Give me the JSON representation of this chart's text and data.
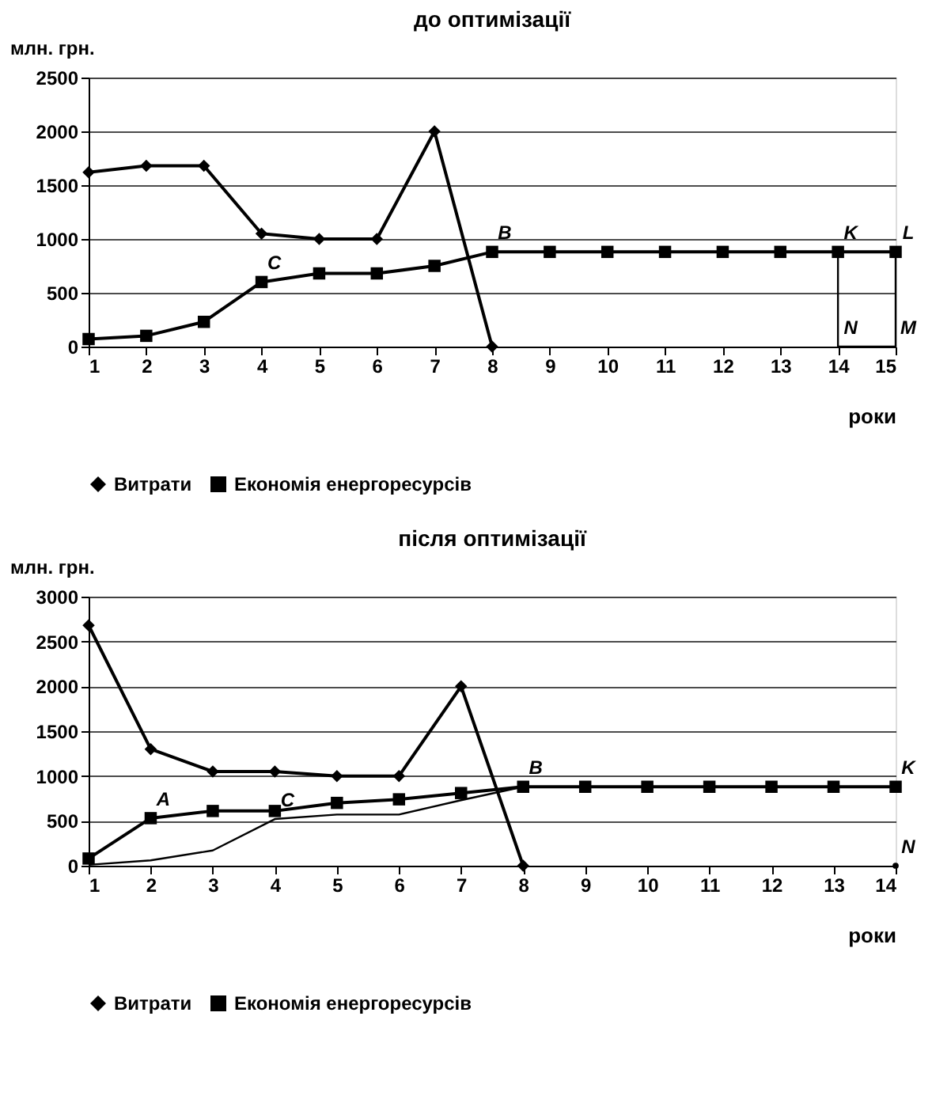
{
  "chart_data": [
    {
      "type": "line",
      "title": "до оптимізації",
      "ylabel": "млн. грн.",
      "xlabel": "роки",
      "xlim": [
        1,
        15
      ],
      "xticks": [
        1,
        2,
        3,
        4,
        5,
        6,
        7,
        8,
        9,
        10,
        11,
        12,
        13,
        14,
        15
      ],
      "ylim": [
        0,
        2500
      ],
      "yticks": [
        0,
        500,
        1000,
        1500,
        2000,
        2500
      ],
      "grid": "y",
      "legend": "bottom",
      "series": [
        {
          "name": "Витрати",
          "color": "#000000",
          "marker": "diamond",
          "x": [
            1,
            2,
            3,
            4,
            5,
            6,
            7,
            8
          ],
          "values": [
            1620,
            1680,
            1680,
            1050,
            1000,
            1000,
            2000,
            0
          ]
        },
        {
          "name": "Економія енергоресурсів",
          "color": "#000000",
          "marker": "square",
          "x": [
            1,
            2,
            3,
            4,
            5,
            6,
            7,
            8,
            9,
            10,
            11,
            12,
            13,
            14,
            15
          ],
          "values": [
            70,
            100,
            230,
            600,
            680,
            680,
            750,
            880,
            880,
            880,
            880,
            880,
            880,
            880,
            880
          ]
        },
        {
          "color": "#000000",
          "marker": "none",
          "x": [
            14,
            14,
            15,
            15
          ],
          "values": [
            880,
            0,
            0,
            880
          ]
        }
      ],
      "annotations": [
        {
          "text": "B",
          "x": 8,
          "y": 880
        },
        {
          "text": "C",
          "x": 4,
          "y": 600
        },
        {
          "text": "K",
          "x": 14,
          "y": 880
        },
        {
          "text": "L",
          "x": 15,
          "y": 880
        },
        {
          "text": "N",
          "x": 14,
          "y": 0
        },
        {
          "text": "M",
          "x": 15,
          "y": 0
        }
      ]
    },
    {
      "type": "line",
      "title": "після оптимізації",
      "ylabel": "млн. грн.",
      "xlabel": "роки",
      "xlim": [
        1,
        14
      ],
      "xticks": [
        1,
        2,
        3,
        4,
        5,
        6,
        7,
        8,
        9,
        10,
        11,
        12,
        13,
        14
      ],
      "ylim": [
        0,
        3000
      ],
      "yticks": [
        0,
        500,
        1000,
        1500,
        2000,
        2500,
        3000
      ],
      "grid": "y",
      "legend": "bottom",
      "series": [
        {
          "name": "Витрати",
          "color": "#000000",
          "marker": "diamond",
          "x": [
            1,
            2,
            3,
            4,
            5,
            6,
            7,
            8
          ],
          "values": [
            2680,
            1300,
            1050,
            1050,
            1000,
            1000,
            2000,
            0
          ]
        },
        {
          "name": "Економія енергоресурсів",
          "color": "#000000",
          "marker": "square",
          "x": [
            1,
            2,
            3,
            4,
            5,
            6,
            7,
            8,
            9,
            10,
            11,
            12,
            13,
            14
          ],
          "values": [
            80,
            530,
            610,
            610,
            700,
            740,
            810,
            880,
            880,
            880,
            880,
            880,
            880,
            880
          ]
        },
        {
          "color": "#000000",
          "marker": "none",
          "x": [
            1,
            2,
            3,
            4,
            5,
            6,
            7,
            8
          ],
          "values": [
            10,
            60,
            170,
            520,
            570,
            570,
            730,
            880
          ]
        },
        {
          "type": "scatter",
          "color": "#000000",
          "marker": "circle",
          "x": [
            14
          ],
          "values": [
            0
          ]
        }
      ],
      "annotations": [
        {
          "text": "A",
          "x": 2,
          "y": 530
        },
        {
          "text": "B",
          "x": 8,
          "y": 880
        },
        {
          "text": "C",
          "x": 4,
          "y": 520
        },
        {
          "text": "K",
          "x": 14,
          "y": 880
        },
        {
          "text": "N",
          "x": 14,
          "y": 0
        }
      ]
    }
  ]
}
